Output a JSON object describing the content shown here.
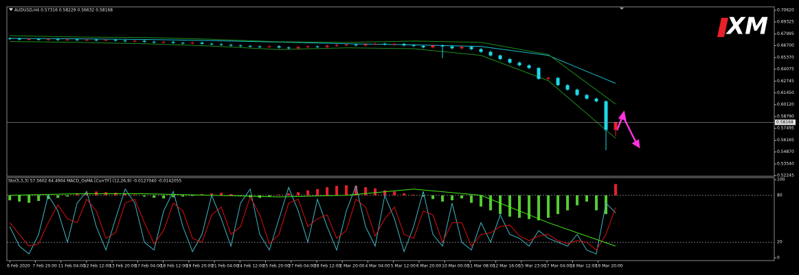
{
  "chart_data": [
    {
      "type": "candlestick",
      "title": "AUDUSD,H4 0.57316 0.58229 0.56632 0.58168",
      "watermark": "XM",
      "open": [
        0.675,
        0.6745,
        0.6738,
        0.6742,
        0.6735,
        0.674,
        0.6732,
        0.6738,
        0.673,
        0.6735,
        0.6728,
        0.6733,
        0.6725,
        0.6718,
        0.6722,
        0.6712,
        0.6705,
        0.671,
        0.67,
        0.6695,
        0.6702,
        0.669,
        0.6685,
        0.6678,
        0.667,
        0.6665,
        0.666,
        0.6655,
        0.6662,
        0.6648,
        0.664,
        0.6652,
        0.666,
        0.6655,
        0.6668,
        0.6675,
        0.668,
        0.6672,
        0.6685,
        0.669,
        0.6682,
        0.6688,
        0.6672,
        0.6665,
        0.665,
        0.667,
        0.666,
        0.664,
        0.6655,
        0.663,
        0.66,
        0.656,
        0.652,
        0.648,
        0.645,
        0.642,
        0.63,
        0.631,
        0.623,
        0.618,
        0.612,
        0.608,
        0.605,
        0.57316
      ],
      "high": [
        0.6762,
        0.6757,
        0.6754,
        0.6754,
        0.6752,
        0.6752,
        0.675,
        0.675,
        0.6747,
        0.6747,
        0.6745,
        0.6745,
        0.6737,
        0.6734,
        0.6734,
        0.6724,
        0.6722,
        0.6722,
        0.6712,
        0.6714,
        0.6714,
        0.6702,
        0.6697,
        0.669,
        0.6682,
        0.6677,
        0.6672,
        0.6674,
        0.6674,
        0.666,
        0.6664,
        0.6672,
        0.6672,
        0.668,
        0.6687,
        0.6692,
        0.6692,
        0.6697,
        0.6702,
        0.6702,
        0.67,
        0.67,
        0.6684,
        0.6677,
        0.6682,
        0.6682,
        0.6672,
        0.6667,
        0.6667,
        0.6642,
        0.6612,
        0.6572,
        0.6532,
        0.6492,
        0.6462,
        0.6432,
        0.6322,
        0.6322,
        0.6242,
        0.6192,
        0.6132,
        0.6092,
        0.6062,
        0.58229
      ],
      "low": [
        0.6733,
        0.6726,
        0.6726,
        0.6723,
        0.6723,
        0.672,
        0.672,
        0.6718,
        0.6718,
        0.6716,
        0.6716,
        0.6713,
        0.6706,
        0.6706,
        0.67,
        0.6693,
        0.6693,
        0.6688,
        0.6683,
        0.6683,
        0.6678,
        0.6673,
        0.6666,
        0.6658,
        0.6653,
        0.6648,
        0.6643,
        0.6643,
        0.6636,
        0.6628,
        0.6628,
        0.664,
        0.6643,
        0.6643,
        0.6656,
        0.6663,
        0.666,
        0.666,
        0.6673,
        0.667,
        0.667,
        0.666,
        0.6653,
        0.6638,
        0.6638,
        0.653,
        0.6628,
        0.6628,
        0.6618,
        0.6588,
        0.6548,
        0.6508,
        0.6468,
        0.6438,
        0.6408,
        0.6288,
        0.6288,
        0.6218,
        0.6168,
        0.6108,
        0.6068,
        0.6038,
        0.5506,
        0.56632
      ],
      "close": [
        0.6745,
        0.6738,
        0.6742,
        0.6735,
        0.674,
        0.6732,
        0.6738,
        0.673,
        0.6735,
        0.6728,
        0.6733,
        0.6725,
        0.6718,
        0.6722,
        0.6712,
        0.6705,
        0.671,
        0.67,
        0.6695,
        0.6702,
        0.669,
        0.6685,
        0.6678,
        0.667,
        0.6665,
        0.666,
        0.6655,
        0.6662,
        0.6648,
        0.664,
        0.6652,
        0.666,
        0.6655,
        0.6668,
        0.6675,
        0.668,
        0.6672,
        0.6685,
        0.669,
        0.6682,
        0.6688,
        0.6672,
        0.6665,
        0.665,
        0.667,
        0.666,
        0.664,
        0.6655,
        0.663,
        0.66,
        0.656,
        0.652,
        0.648,
        0.645,
        0.642,
        0.63,
        0.631,
        0.623,
        0.618,
        0.612,
        0.608,
        0.605,
        0.5732,
        0.58168
      ],
      "up_color": "#e8202a",
      "down_color": "#1ed8e8",
      "series": [
        {
          "color": "#19c6d6",
          "x": [
            0,
            7,
            14,
            21,
            28,
            35,
            42,
            49,
            56,
            63
          ],
          "values": [
            0.675,
            0.6745,
            0.6738,
            0.6725,
            0.6708,
            0.669,
            0.6678,
            0.666,
            0.656,
            0.625
          ]
        },
        {
          "color": "#1e8f1e",
          "x": [
            0,
            7,
            14,
            21,
            28,
            35,
            42,
            49,
            56,
            63
          ],
          "values": [
            0.678,
            0.6765,
            0.676,
            0.674,
            0.6712,
            0.6705,
            0.672,
            0.6705,
            0.657,
            0.602
          ]
        },
        {
          "color": "#1e8f1e",
          "x": [
            0,
            7,
            14,
            21,
            28,
            35,
            42,
            49,
            56,
            63
          ],
          "values": [
            0.6715,
            0.6705,
            0.669,
            0.6665,
            0.6625,
            0.6645,
            0.6635,
            0.656,
            0.628,
            0.564
          ]
        }
      ],
      "last_price": 0.58168,
      "xlim": [
        -0.3,
        79.5
      ],
      "ylim": [
        0.52245,
        0.7062
      ],
      "yticks": [
        {
          "value": 0.7062,
          "label": "0.70620"
        },
        0.69325,
        0.67995,
        {
          "value": 0.667,
          "label": "0.66700"
        },
        {
          "value": 0.6537,
          "label": "0.65370"
        },
        0.64075,
        0.62745,
        {
          "value": 0.6145,
          "label": "0.61450"
        },
        {
          "value": 0.6012,
          "label": "0.60120"
        },
        {
          "value": 0.5879,
          "label": "0.58790"
        },
        0.57495,
        0.56165,
        {
          "value": 0.5487,
          "label": "0.54870"
        },
        {
          "value": 0.5354,
          "label": "0.53540"
        },
        0.52245
      ]
    },
    {
      "type": "oscillator",
      "title": "Sto(5,3,3) 57.5602 64.4904 MACD_OsMA [CurrTF] (12,26,9) -0.0127040 -0.0142055",
      "series": [
        {
          "color": "#3fb8c8",
          "values": [
            40,
            15,
            5,
            30,
            80,
            60,
            20,
            70,
            85,
            40,
            10,
            50,
            88,
            70,
            20,
            10,
            60,
            85,
            40,
            8,
            30,
            80,
            50,
            15,
            70,
            88,
            30,
            10,
            50,
            90,
            60,
            20,
            75,
            40,
            10,
            60,
            92,
            40,
            15,
            80,
            50,
            8,
            40,
            85,
            30,
            15,
            70,
            20,
            10,
            45,
            20,
            55,
            30,
            25,
            15,
            35,
            25,
            20,
            15,
            30,
            10,
            5,
            70,
            57.5602
          ]
        },
        {
          "color": "#e01010",
          "values": [
            45,
            30,
            15,
            18,
            45,
            68,
            50,
            45,
            75,
            60,
            25,
            32,
            70,
            75,
            45,
            18,
            35,
            70,
            60,
            25,
            20,
            55,
            65,
            30,
            40,
            78,
            55,
            18,
            30,
            70,
            75,
            40,
            50,
            55,
            25,
            35,
            75,
            65,
            28,
            50,
            65,
            30,
            25,
            60,
            55,
            20,
            45,
            45,
            15,
            30,
            32,
            40,
            42,
            28,
            22,
            28,
            30,
            22,
            18,
            22,
            20,
            10,
            30,
            64.4904
          ]
        },
        {
          "color": "#44ee11",
          "x": [
            0,
            7,
            14,
            21,
            28,
            35,
            42,
            49,
            56,
            63
          ],
          "values": [
            80,
            82,
            82,
            80,
            78,
            80,
            88,
            80,
            45,
            15
          ]
        }
      ],
      "bars": {
        "axis": "y2",
        "up_color": "#e8202a",
        "down_color": "#55cc33",
        "values": [
          -0.0008,
          -0.001,
          -0.0012,
          -0.0009,
          -0.0006,
          -0.0004,
          -0.0002,
          0.0002,
          0.0004,
          0.0006,
          0.0005,
          0.0004,
          0.0003,
          0.0001,
          -0.0002,
          -0.0004,
          -0.0005,
          -0.0003,
          -0.0002,
          -0.0001,
          0.0002,
          0.0003,
          0.0004,
          0.0002,
          -0.0001,
          -0.0003,
          -0.0004,
          -0.0002,
          0.0001,
          0.0003,
          0.0005,
          0.0008,
          0.001,
          0.0013,
          0.0015,
          0.0016,
          0.0015,
          0.0013,
          0.0011,
          0.0008,
          0.0006,
          0.0003,
          0.0001,
          -0.0002,
          -0.0006,
          -0.001,
          -0.0008,
          -0.0005,
          -0.0012,
          -0.0018,
          -0.0024,
          -0.003,
          -0.0034,
          -0.0036,
          -0.0038,
          -0.004,
          -0.0036,
          -0.003,
          -0.0024,
          -0.0016,
          -0.001,
          -0.0024,
          -0.003,
          0.0018
        ]
      },
      "xlim": [
        -0.3,
        79.5
      ],
      "ylim": [
        0,
        100
      ],
      "yticks": [
        100,
        80,
        20,
        0
      ],
      "y2lim": [
        -0.01,
        0.0025
      ],
      "grid": true,
      "xticks": [
        {
          "value": 0,
          "label": "6 Feb 2020"
        },
        {
          "value": 2.66,
          "label": "7 Feb 20:00"
        },
        {
          "value": 5.32,
          "label": "11 Feb 04:00"
        },
        {
          "value": 7.98,
          "label": "12 Feb 12:00"
        },
        {
          "value": 10.64,
          "label": "13 Feb 20:00"
        },
        {
          "value": 13.3,
          "label": "17 Feb 04:00"
        },
        {
          "value": 15.96,
          "label": "18 Feb 12:00"
        },
        {
          "value": 18.62,
          "label": "19 Feb 20:00"
        },
        {
          "value": 21.28,
          "label": "21 Feb 04:00"
        },
        {
          "value": 23.94,
          "label": "24 Feb 12:00"
        },
        {
          "value": 26.6,
          "label": "25 Feb 20:00"
        },
        {
          "value": 29.26,
          "label": "27 Feb 04:00"
        },
        {
          "value": 31.92,
          "label": "28 Feb 12:00"
        },
        {
          "value": 34.58,
          "label": "2 Mar 20:00"
        },
        {
          "value": 37.24,
          "label": "4 Mar 04:00"
        },
        {
          "value": 39.9,
          "label": "5 Mar 12:00"
        },
        {
          "value": 42.56,
          "label": "6 Mar 20:00"
        },
        {
          "value": 45.22,
          "label": "10 Mar 00:00"
        },
        {
          "value": 47.88,
          "label": "11 Mar 08:00"
        },
        {
          "value": 50.54,
          "label": "12 Mar 16:00"
        },
        {
          "value": 53.2,
          "label": "15 Mar 23:00"
        },
        {
          "value": 55.86,
          "label": "17 Mar 04:00"
        },
        {
          "value": 58.52,
          "label": "18 Mar 12:00"
        },
        {
          "value": 61.18,
          "label": "19 Mar 20:00"
        }
      ]
    }
  ]
}
